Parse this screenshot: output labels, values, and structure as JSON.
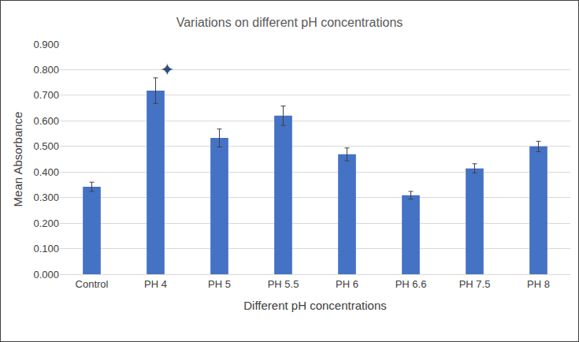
{
  "chart_data": {
    "type": "bar",
    "title": "Variations on different pH concentrations",
    "x_label": "Different pH concentrations",
    "y_label": "Mean Absorbance",
    "categories": [
      "Control",
      "PH 4",
      "PH 5",
      "PH 5.5",
      "PH 6",
      "PH 6.6",
      "PH 7.5",
      "PH 8"
    ],
    "values": [
      0.342,
      0.718,
      0.533,
      0.62,
      0.469,
      0.309,
      0.414,
      0.5
    ],
    "errors": [
      0.018,
      0.05,
      0.035,
      0.038,
      0.025,
      0.015,
      0.018,
      0.02
    ],
    "color": "#4472c4",
    "ylim": [
      0,
      0.9
    ],
    "yticks": [
      {
        "value": 0,
        "label": "0.000"
      },
      {
        "value": 0.1,
        "label": "0.100"
      },
      {
        "value": 0.2,
        "label": "0.200"
      },
      {
        "value": 0.3,
        "label": "0.300"
      },
      {
        "value": 0.4,
        "label": "0.400"
      },
      {
        "value": 0.5,
        "label": "0.500"
      },
      {
        "value": 0.6,
        "label": "0.600"
      },
      {
        "value": 0.7,
        "label": "0.700"
      },
      {
        "value": 0.8,
        "label": "0.800"
      },
      {
        "value": 0.9,
        "label": "0.900"
      }
    ],
    "grid": true,
    "annotations": [
      {
        "text": "✦",
        "x": "PH 4",
        "y": 0.8
      }
    ]
  }
}
